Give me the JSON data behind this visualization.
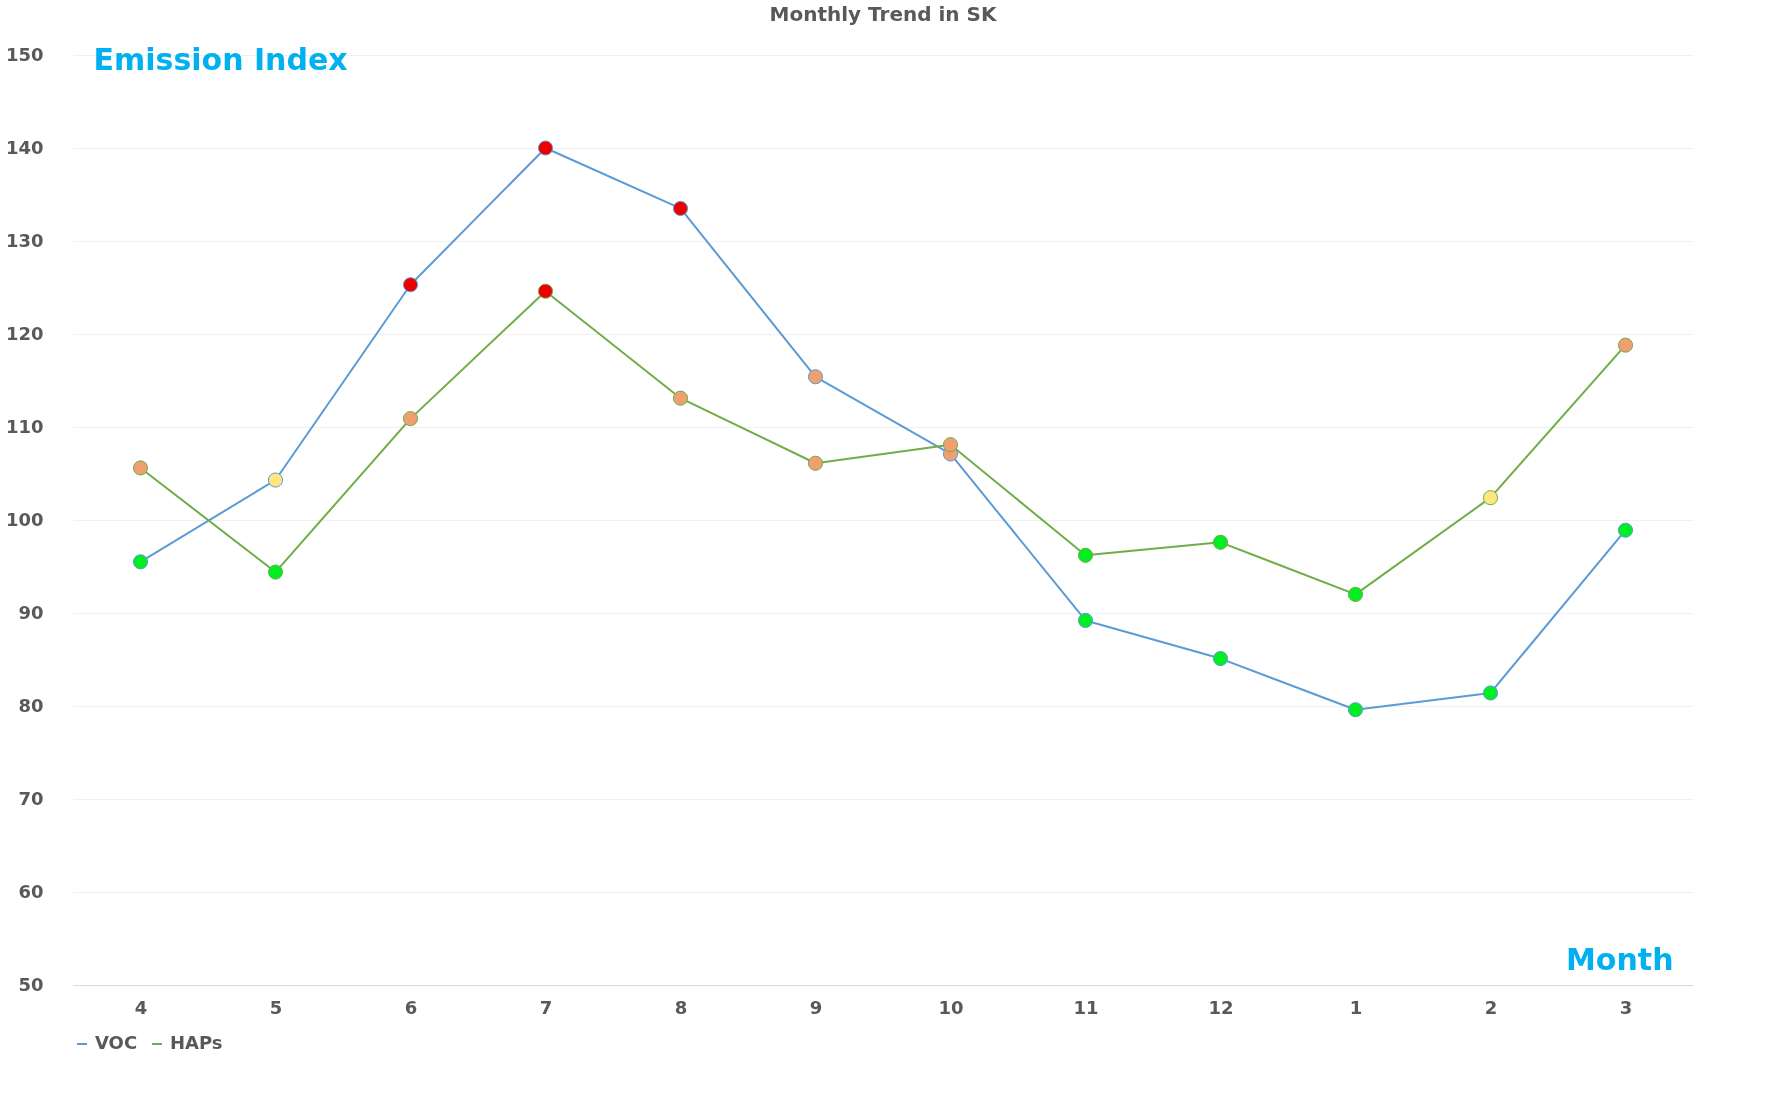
{
  "chart_data": {
    "type": "line",
    "title": "Monthly Trend in SK",
    "xlabel": "Month",
    "ylabel": "Emission Index",
    "categories": [
      "4",
      "5",
      "6",
      "7",
      "8",
      "9",
      "10",
      "11",
      "12",
      "1",
      "2",
      "3"
    ],
    "series": [
      {
        "name": "VOC",
        "color": "#5b9bd5",
        "values": [
          95.5,
          104.3,
          125.3,
          140,
          133.5,
          115.4,
          107.1,
          89.2,
          85.1,
          79.6,
          81.4,
          98.9
        ],
        "colors": [
          "#00ee22",
          "#ffe680",
          "#ee0000",
          "#ee0000",
          "#ee0000",
          "#f0a070",
          "#f0a070",
          "#00ee22",
          "#00ee22",
          "#00ee22",
          "#00ee22",
          "#00ee22"
        ]
      },
      {
        "name": "HAPs",
        "color": "#70ad47",
        "values": [
          105.6,
          94.4,
          110.9,
          124.6,
          113.1,
          106.1,
          108.1,
          96.2,
          97.6,
          92,
          102.4,
          118.8
        ],
        "colors": [
          "#f0a070",
          "#00ee22",
          "#f0a070",
          "#ee0000",
          "#f0a070",
          "#f0a070",
          "#f0a070",
          "#00ee22",
          "#00ee22",
          "#00ee22",
          "#ffe680",
          "#f0a070"
        ]
      }
    ],
    "ylim": [
      50,
      150
    ],
    "yticks": [
      50,
      60,
      70,
      80,
      90,
      100,
      110,
      120,
      130,
      140,
      150
    ],
    "grid": "y",
    "legend": "bottom",
    "marker": "circle",
    "line_style": "solid"
  }
}
